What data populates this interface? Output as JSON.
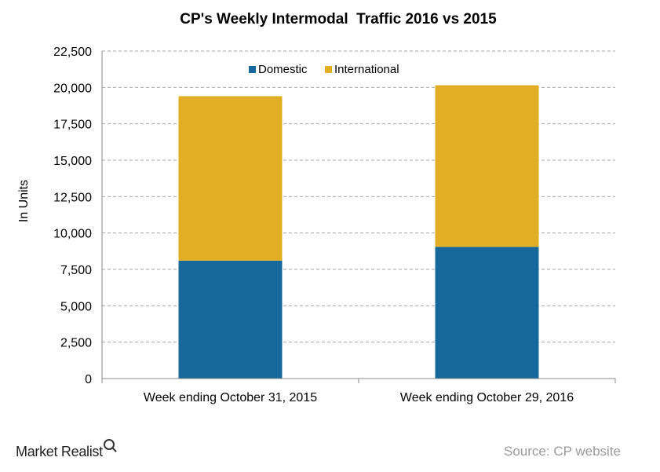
{
  "chart_data": {
    "type": "bar",
    "stacked": true,
    "title": "CP's Weekly Intermodal  Traffic 2016 vs 2015",
    "ylabel": "In Units",
    "xlabel": "",
    "ylim": [
      0,
      22500
    ],
    "yticks": [
      "0",
      "2,500",
      "5,000",
      "7,500",
      "10,000",
      "12,500",
      "15,000",
      "17,500",
      "20,000",
      "22,500"
    ],
    "categories": [
      "Week ending October 31, 2015",
      "Week ending October 29, 2016"
    ],
    "series": [
      {
        "name": "Domestic",
        "values": [
          8100,
          9050
        ],
        "color": "#17699b"
      },
      {
        "name": "International",
        "values": [
          11300,
          11100
        ],
        "color": "#e2ae24"
      }
    ],
    "grid": true,
    "legend_position": "top"
  },
  "footer": {
    "brand": "Market Realist",
    "source": "Source: CP website"
  }
}
